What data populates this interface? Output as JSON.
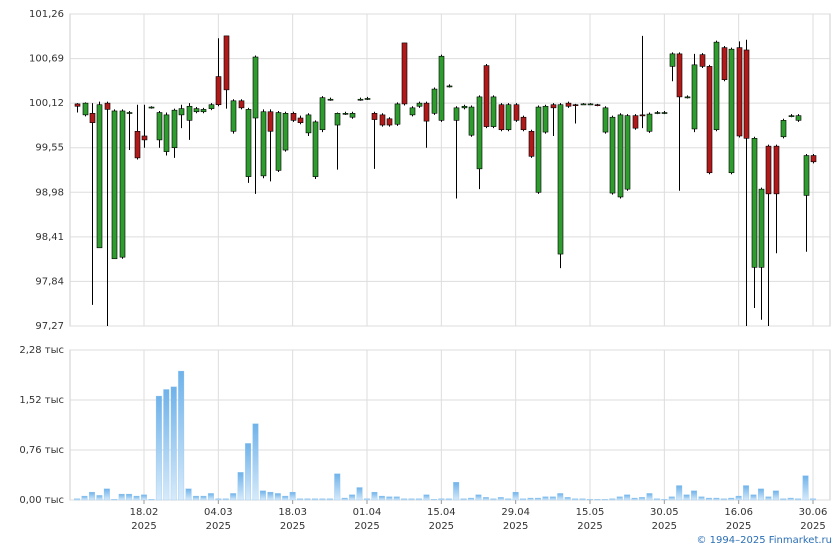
{
  "chart_data": [
    {
      "type": "candlestick",
      "open": [
        100.11,
        99.97,
        99.99,
        98.27,
        100.12,
        98.13,
        98.15,
        100.0,
        99.76,
        99.7,
        100.06,
        99.65,
        99.5,
        99.55,
        99.97,
        99.9,
        100.01,
        100.01,
        100.05,
        100.46,
        100.98,
        99.76,
        100.15,
        99.18,
        99.93,
        99.19,
        100.01,
        99.26,
        99.52,
        99.99,
        99.93,
        99.74,
        99.18,
        99.78,
        100.17,
        99.84,
        99.99,
        99.94,
        100.17,
        100.18,
        99.99,
        99.97,
        99.92,
        99.85,
        100.89,
        99.97,
        100.08,
        100.12,
        99.99,
        99.9,
        100.34,
        99.9,
        100.06,
        99.71,
        99.28,
        100.6,
        99.82,
        100.1,
        99.78,
        100.1,
        99.94,
        99.76,
        98.98,
        99.75,
        100.1,
        98.19,
        100.12,
        100.1,
        100.11,
        100.11,
        100.1,
        99.75,
        98.97,
        98.92,
        99.02,
        99.96,
        99.97,
        99.76,
        100.0,
        100.0,
        100.59,
        100.75,
        100.2,
        99.79,
        100.74,
        100.59,
        99.78,
        100.83,
        99.23,
        100.83,
        100.8,
        98.02,
        98.02,
        99.57,
        99.57,
        99.69,
        99.96,
        99.9,
        98.94,
        99.45
      ],
      "high": [
        100.12,
        100.13,
        100.12,
        100.14,
        100.14,
        100.04,
        100.04,
        100.02,
        100.1,
        100.1,
        100.08,
        100.02,
        100.0,
        100.05,
        100.1,
        100.12,
        100.07,
        100.06,
        100.12,
        100.95,
        100.98,
        100.17,
        100.17,
        100.06,
        100.73,
        100.04,
        100.04,
        100.02,
        100.01,
        100.01,
        99.96,
        99.99,
        99.9,
        100.21,
        100.19,
        100.0,
        100.01,
        100.01,
        100.19,
        100.2,
        100.01,
        99.99,
        99.94,
        100.13,
        100.89,
        100.08,
        100.14,
        100.14,
        100.32,
        100.74,
        100.36,
        100.08,
        100.1,
        100.09,
        100.22,
        100.62,
        100.22,
        100.12,
        100.12,
        100.12,
        99.96,
        99.78,
        100.09,
        100.1,
        100.12,
        100.12,
        100.14,
        100.11,
        100.12,
        100.12,
        100.11,
        100.08,
        99.96,
        99.99,
        99.98,
        99.98,
        100.98,
        100.0,
        100.02,
        100.02,
        100.77,
        100.77,
        100.22,
        100.75,
        100.76,
        100.61,
        100.92,
        100.85,
        100.83,
        100.91,
        100.93,
        99.69,
        99.04,
        99.59,
        99.59,
        99.92,
        99.98,
        99.98,
        99.47,
        99.47
      ],
      "low": [
        100.0,
        99.95,
        97.54,
        98.27,
        97.27,
        98.13,
        98.13,
        99.52,
        99.4,
        99.55,
        100.05,
        99.55,
        99.45,
        99.42,
        99.8,
        99.65,
        99.99,
        99.99,
        100.03,
        100.08,
        100.05,
        99.73,
        100.04,
        99.1,
        98.96,
        99.16,
        99.12,
        99.24,
        99.5,
        99.88,
        99.85,
        99.7,
        99.15,
        99.75,
        100.15,
        99.27,
        99.97,
        99.92,
        100.15,
        100.16,
        99.28,
        99.82,
        99.82,
        99.83,
        100.09,
        99.95,
        100.06,
        99.55,
        99.97,
        99.88,
        100.32,
        98.9,
        100.04,
        99.69,
        99.02,
        99.8,
        99.8,
        99.76,
        99.76,
        99.88,
        99.76,
        99.42,
        98.96,
        99.73,
        99.7,
        98.01,
        100.06,
        99.86,
        100.1,
        100.1,
        100.08,
        99.73,
        98.95,
        98.9,
        99.0,
        99.78,
        99.8,
        99.74,
        99.98,
        99.98,
        100.4,
        99.0,
        100.18,
        99.75,
        100.57,
        99.21,
        99.76,
        100.4,
        99.21,
        99.68,
        97.27,
        97.5,
        97.35,
        97.27,
        98.2,
        99.67,
        99.94,
        99.88,
        98.22,
        99.35
      ],
      "close": [
        100.08,
        100.12,
        99.87,
        100.1,
        100.04,
        100.02,
        100.02,
        100.0,
        99.42,
        99.65,
        100.07,
        100.0,
        99.97,
        100.03,
        100.05,
        100.08,
        100.05,
        100.04,
        100.1,
        100.1,
        100.29,
        100.15,
        100.06,
        100.04,
        100.71,
        100.01,
        99.76,
        100.0,
        99.99,
        99.9,
        99.87,
        99.97,
        99.88,
        100.19,
        100.17,
        99.99,
        99.99,
        99.99,
        100.17,
        100.18,
        99.91,
        99.84,
        99.84,
        100.11,
        100.11,
        100.06,
        100.12,
        99.89,
        100.3,
        100.72,
        100.34,
        100.06,
        100.08,
        100.07,
        100.2,
        99.82,
        100.2,
        99.78,
        100.1,
        99.9,
        99.78,
        99.44,
        100.07,
        100.08,
        100.06,
        100.1,
        100.08,
        100.09,
        100.11,
        100.11,
        100.09,
        100.06,
        99.94,
        99.97,
        99.96,
        99.8,
        99.96,
        99.98,
        100.0,
        100.0,
        100.75,
        100.2,
        100.2,
        100.61,
        100.59,
        99.23,
        100.9,
        100.42,
        100.81,
        99.7,
        99.67,
        99.67,
        99.02,
        98.96,
        98.96,
        99.9,
        99.96,
        99.96,
        99.45,
        99.37
      ],
      "up_color": "#2e9c2e",
      "down_color": "#b01a1a",
      "ylim": [
        97.27,
        101.26
      ],
      "yticks": [
        {
          "value": 97.27,
          "label": "97,27"
        },
        {
          "value": 97.84,
          "label": "97,84"
        },
        {
          "value": 98.41,
          "label": "98,41"
        },
        {
          "value": 98.98,
          "label": "98,98"
        },
        {
          "value": 99.55,
          "label": "99,55"
        },
        {
          "value": 100.12,
          "label": "100,12"
        },
        {
          "value": 100.69,
          "label": "100,69"
        },
        {
          "value": 101.26,
          "label": "101,26"
        }
      ],
      "grid": true
    },
    {
      "type": "bar",
      "values": [
        0.02,
        0.06,
        0.12,
        0.07,
        0.17,
        0.01,
        0.09,
        0.09,
        0.06,
        0.08,
        0.01,
        1.58,
        1.68,
        1.72,
        1.96,
        0.17,
        0.06,
        0.06,
        0.1,
        0.02,
        0.02,
        0.1,
        0.42,
        0.86,
        1.16,
        0.14,
        0.12,
        0.1,
        0.06,
        0.12,
        0.02,
        0.02,
        0.02,
        0.02,
        0.02,
        0.4,
        0.03,
        0.08,
        0.19,
        0.02,
        0.12,
        0.06,
        0.05,
        0.05,
        0.02,
        0.02,
        0.02,
        0.08,
        0.01,
        0.02,
        0.02,
        0.27,
        0.02,
        0.03,
        0.08,
        0.04,
        0.02,
        0.04,
        0.02,
        0.12,
        0.02,
        0.03,
        0.03,
        0.05,
        0.05,
        0.1,
        0.04,
        0.02,
        0.02,
        0.01,
        0.01,
        0.01,
        0.02,
        0.05,
        0.08,
        0.03,
        0.04,
        0.1,
        0.02,
        0.01,
        0.05,
        0.22,
        0.08,
        0.14,
        0.05,
        0.03,
        0.03,
        0.02,
        0.03,
        0.06,
        0.22,
        0.08,
        0.17,
        0.05,
        0.14,
        0.02,
        0.03,
        0.02,
        0.37,
        0.02
      ],
      "categories": [
        null,
        null,
        null,
        null,
        null,
        null,
        null,
        null,
        null,
        "18.02\n2025",
        null,
        null,
        null,
        null,
        null,
        null,
        null,
        null,
        null,
        "04.03\n2025",
        null,
        null,
        null,
        null,
        null,
        null,
        null,
        null,
        null,
        "18.03\n2025",
        null,
        null,
        null,
        null,
        null,
        null,
        null,
        null,
        null,
        "01.04\n2025",
        null,
        null,
        null,
        null,
        null,
        null,
        null,
        null,
        null,
        "15.04\n2025",
        null,
        null,
        null,
        null,
        null,
        null,
        null,
        null,
        null,
        "29.04\n2025",
        null,
        null,
        null,
        null,
        null,
        null,
        null,
        null,
        null,
        "15.05\n2025",
        null,
        null,
        null,
        null,
        null,
        null,
        null,
        null,
        null,
        "30.05\n2025",
        null,
        null,
        null,
        null,
        null,
        null,
        null,
        null,
        null,
        "16.06\n2025",
        null,
        null,
        null,
        null,
        null,
        null,
        null,
        null,
        null,
        "30.06\n2025"
      ],
      "color": "#8cc3ee",
      "ylim": [
        0,
        2.28
      ],
      "yticks": [
        {
          "value": 0,
          "label": "0,00 тыс"
        },
        {
          "value": 0.76,
          "label": "0,76 тыс"
        },
        {
          "value": 1.52,
          "label": "1,52 тыс"
        },
        {
          "value": 2.28,
          "label": "2,28 тыс"
        }
      ],
      "grid": true
    }
  ],
  "footer": "© 1994–2025 Finmarket.ru"
}
